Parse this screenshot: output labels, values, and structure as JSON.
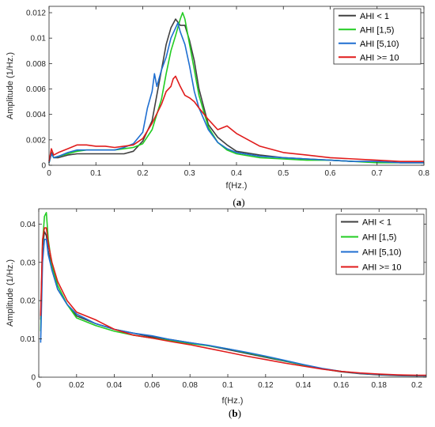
{
  "colors": {
    "AHI < 1": "#404040",
    "AHI [1,5)": "#22cc22",
    "AHI [5,10)": "#1f6fd1",
    "AHI >= 10": "#e01b1b"
  },
  "chart_data": [
    {
      "type": "line",
      "caption_open": "(",
      "caption_letter": "a",
      "caption_close": ")",
      "xlabel": "f(Hz.)",
      "ylabel": "Amplitude (1/Hz.)",
      "xlim": [
        0,
        0.8
      ],
      "ylim": [
        0,
        0.0125
      ],
      "xticks": [
        "0",
        "0.1",
        "0.2",
        "0.3",
        "0.4",
        "0.5",
        "0.6",
        "0.7",
        "0.8"
      ],
      "yticks": [
        "0",
        "0.002",
        "0.004",
        "0.006",
        "0.008",
        "0.01",
        "0.012"
      ],
      "legend_position": "top-right",
      "series": [
        {
          "name": "AHI < 1",
          "x": [
            0,
            0.005,
            0.01,
            0.02,
            0.04,
            0.06,
            0.08,
            0.1,
            0.12,
            0.14,
            0.16,
            0.18,
            0.2,
            0.22,
            0.24,
            0.25,
            0.26,
            0.27,
            0.28,
            0.29,
            0.3,
            0.31,
            0.32,
            0.34,
            0.36,
            0.38,
            0.4,
            0.45,
            0.5,
            0.55,
            0.6,
            0.65,
            0.7,
            0.75,
            0.8
          ],
          "y": [
            0.0002,
            0.001,
            0.0006,
            0.0006,
            0.0008,
            0.0009,
            0.0009,
            0.0009,
            0.0009,
            0.0009,
            0.0009,
            0.0011,
            0.0019,
            0.0035,
            0.0075,
            0.0095,
            0.0108,
            0.0115,
            0.011,
            0.011,
            0.0098,
            0.0082,
            0.006,
            0.0032,
            0.0022,
            0.0016,
            0.0011,
            0.0008,
            0.0006,
            0.0005,
            0.0004,
            0.0003,
            0.0003,
            0.0002,
            0.0002
          ]
        },
        {
          "name": "AHI [1,5)",
          "x": [
            0,
            0.005,
            0.01,
            0.02,
            0.04,
            0.06,
            0.08,
            0.1,
            0.12,
            0.14,
            0.16,
            0.18,
            0.2,
            0.22,
            0.24,
            0.25,
            0.26,
            0.27,
            0.28,
            0.285,
            0.29,
            0.3,
            0.31,
            0.32,
            0.34,
            0.36,
            0.38,
            0.4,
            0.45,
            0.5,
            0.55,
            0.6,
            0.65,
            0.7,
            0.75,
            0.8
          ],
          "y": [
            0.0002,
            0.0009,
            0.0006,
            0.0007,
            0.0009,
            0.0011,
            0.0012,
            0.0012,
            0.0012,
            0.0012,
            0.0013,
            0.0014,
            0.0017,
            0.0028,
            0.0052,
            0.0072,
            0.009,
            0.0102,
            0.0115,
            0.012,
            0.0115,
            0.0095,
            0.0075,
            0.0055,
            0.003,
            0.0018,
            0.0012,
            0.0009,
            0.0006,
            0.0005,
            0.0004,
            0.0004,
            0.0003,
            0.0002,
            0.0002,
            0.0002
          ]
        },
        {
          "name": "AHI [5,10)",
          "x": [
            0,
            0.005,
            0.01,
            0.02,
            0.04,
            0.06,
            0.08,
            0.1,
            0.12,
            0.14,
            0.16,
            0.18,
            0.2,
            0.21,
            0.22,
            0.225,
            0.23,
            0.24,
            0.25,
            0.26,
            0.27,
            0.275,
            0.28,
            0.29,
            0.3,
            0.31,
            0.32,
            0.34,
            0.36,
            0.38,
            0.4,
            0.45,
            0.5,
            0.55,
            0.6,
            0.65,
            0.7,
            0.75,
            0.8
          ],
          "y": [
            0.0002,
            0.0009,
            0.0006,
            0.0007,
            0.001,
            0.0012,
            0.0012,
            0.0012,
            0.0012,
            0.0012,
            0.0014,
            0.0017,
            0.0026,
            0.0045,
            0.0058,
            0.0072,
            0.0062,
            0.0075,
            0.0085,
            0.01,
            0.0108,
            0.0112,
            0.0105,
            0.0095,
            0.0078,
            0.0058,
            0.0045,
            0.0028,
            0.0018,
            0.0013,
            0.001,
            0.0007,
            0.0006,
            0.0005,
            0.0004,
            0.0003,
            0.0003,
            0.0002,
            0.0002
          ]
        },
        {
          "name": "AHI >= 10",
          "x": [
            0,
            0.005,
            0.01,
            0.02,
            0.04,
            0.06,
            0.08,
            0.1,
            0.12,
            0.14,
            0.16,
            0.18,
            0.2,
            0.22,
            0.24,
            0.25,
            0.26,
            0.265,
            0.27,
            0.28,
            0.29,
            0.3,
            0.31,
            0.32,
            0.34,
            0.36,
            0.38,
            0.4,
            0.45,
            0.5,
            0.55,
            0.6,
            0.65,
            0.7,
            0.75,
            0.8
          ],
          "y": [
            0.0003,
            0.0013,
            0.0008,
            0.001,
            0.0013,
            0.0016,
            0.0016,
            0.0015,
            0.0015,
            0.0014,
            0.0015,
            0.0016,
            0.0021,
            0.0033,
            0.0048,
            0.0058,
            0.0062,
            0.0068,
            0.007,
            0.0062,
            0.0055,
            0.0053,
            0.005,
            0.0045,
            0.0036,
            0.0028,
            0.0031,
            0.0025,
            0.0015,
            0.001,
            0.0008,
            0.0006,
            0.0005,
            0.0004,
            0.0003,
            0.0003
          ]
        }
      ]
    },
    {
      "type": "line",
      "caption_open": "(",
      "caption_letter": "b",
      "caption_close": ")",
      "xlabel": "f(Hz.)",
      "ylabel": "Amplitude (1/Hz.)",
      "xlim": [
        0,
        0.205
      ],
      "ylim": [
        0,
        0.044
      ],
      "xticks": [
        "0",
        "0.02",
        "0.04",
        "0.06",
        "0.08",
        "0.1",
        "0.12",
        "0.14",
        "0.16",
        "0.18",
        "0.2"
      ],
      "yticks": [
        "0",
        "0.01",
        "0.02",
        "0.03",
        "0.04"
      ],
      "legend_position": "top-right",
      "series": [
        {
          "name": "AHI < 1",
          "x": [
            0.001,
            0.002,
            0.003,
            0.004,
            0.005,
            0.007,
            0.01,
            0.015,
            0.02,
            0.03,
            0.04,
            0.05,
            0.06,
            0.07,
            0.08,
            0.09,
            0.1,
            0.11,
            0.12,
            0.13,
            0.14,
            0.15,
            0.16,
            0.17,
            0.18,
            0.19,
            0.2,
            0.205
          ],
          "y": [
            0.015,
            0.034,
            0.038,
            0.037,
            0.033,
            0.028,
            0.023,
            0.019,
            0.016,
            0.014,
            0.0125,
            0.0115,
            0.0105,
            0.0098,
            0.009,
            0.0082,
            0.0072,
            0.0062,
            0.0052,
            0.0042,
            0.0032,
            0.0022,
            0.0014,
            0.0009,
            0.0006,
            0.0004,
            0.0003,
            0.0003
          ]
        },
        {
          "name": "AHI [1,5)",
          "x": [
            0.001,
            0.002,
            0.003,
            0.004,
            0.005,
            0.007,
            0.01,
            0.015,
            0.02,
            0.03,
            0.04,
            0.05,
            0.06,
            0.07,
            0.08,
            0.09,
            0.1,
            0.11,
            0.12,
            0.13,
            0.14,
            0.15,
            0.16,
            0.17,
            0.18,
            0.19,
            0.2,
            0.205
          ],
          "y": [
            0.012,
            0.035,
            0.042,
            0.043,
            0.036,
            0.029,
            0.024,
            0.019,
            0.0155,
            0.0135,
            0.012,
            0.011,
            0.0102,
            0.0095,
            0.0088,
            0.0082,
            0.0074,
            0.0064,
            0.0054,
            0.0043,
            0.0032,
            0.0022,
            0.0015,
            0.001,
            0.0007,
            0.0005,
            0.0004,
            0.0004
          ]
        },
        {
          "name": "AHI [5,10)",
          "x": [
            0.001,
            0.002,
            0.003,
            0.004,
            0.005,
            0.007,
            0.01,
            0.015,
            0.02,
            0.03,
            0.04,
            0.05,
            0.06,
            0.07,
            0.08,
            0.09,
            0.1,
            0.11,
            0.12,
            0.13,
            0.14,
            0.15,
            0.16,
            0.17,
            0.18,
            0.19,
            0.2,
            0.205
          ],
          "y": [
            0.009,
            0.03,
            0.036,
            0.036,
            0.032,
            0.028,
            0.023,
            0.019,
            0.0165,
            0.014,
            0.0125,
            0.0115,
            0.0108,
            0.0098,
            0.009,
            0.0083,
            0.0074,
            0.0065,
            0.0055,
            0.0044,
            0.0033,
            0.0023,
            0.0015,
            0.001,
            0.0007,
            0.0005,
            0.0004,
            0.0004
          ]
        },
        {
          "name": "AHI >= 10",
          "x": [
            0.001,
            0.002,
            0.003,
            0.004,
            0.005,
            0.007,
            0.01,
            0.015,
            0.02,
            0.03,
            0.04,
            0.05,
            0.06,
            0.07,
            0.08,
            0.09,
            0.1,
            0.11,
            0.12,
            0.13,
            0.14,
            0.15,
            0.16,
            0.17,
            0.18,
            0.19,
            0.2,
            0.205
          ],
          "y": [
            0.016,
            0.036,
            0.039,
            0.039,
            0.035,
            0.03,
            0.025,
            0.02,
            0.017,
            0.015,
            0.0125,
            0.011,
            0.0102,
            0.0093,
            0.0085,
            0.0075,
            0.0065,
            0.0055,
            0.0046,
            0.0037,
            0.0029,
            0.0021,
            0.0015,
            0.0011,
            0.0008,
            0.0006,
            0.0005,
            0.0005
          ]
        }
      ]
    }
  ]
}
